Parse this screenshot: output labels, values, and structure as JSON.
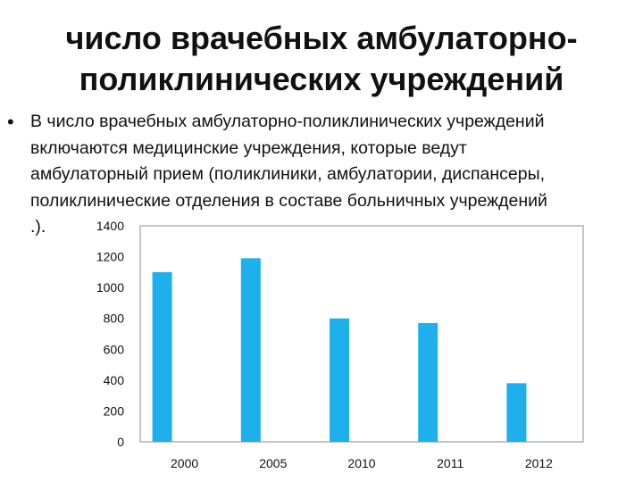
{
  "slide": {
    "title_lines": [
      "число врачебных амбулаторно-",
      "поликлинических учреждений"
    ],
    "bullet_symbol": "•",
    "bullet_lines": [
      "В число врачебных амбулаторно-поликлинических учреждений",
      "включаются медицинские учреждения, которые ведут",
      "амбулаторный прием (поликлиники, амбулатории, диспансеры,",
      "поликлинические отделения в составе больничных учреждений",
      ".)."
    ]
  },
  "chart_data": {
    "type": "bar",
    "categories": [
      "2000",
      "2005",
      "2010",
      "2011",
      "2012"
    ],
    "values": [
      1100,
      1190,
      800,
      770,
      380
    ],
    "ylim": [
      0,
      1400
    ],
    "yticks": [
      0,
      200,
      400,
      600,
      800,
      1000,
      1200,
      1400
    ],
    "title": "",
    "xlabel": "",
    "ylabel": "",
    "grid": false,
    "legend": "none",
    "bar_color": "#1DB0EC",
    "axis_color": "#8C8C8C"
  }
}
